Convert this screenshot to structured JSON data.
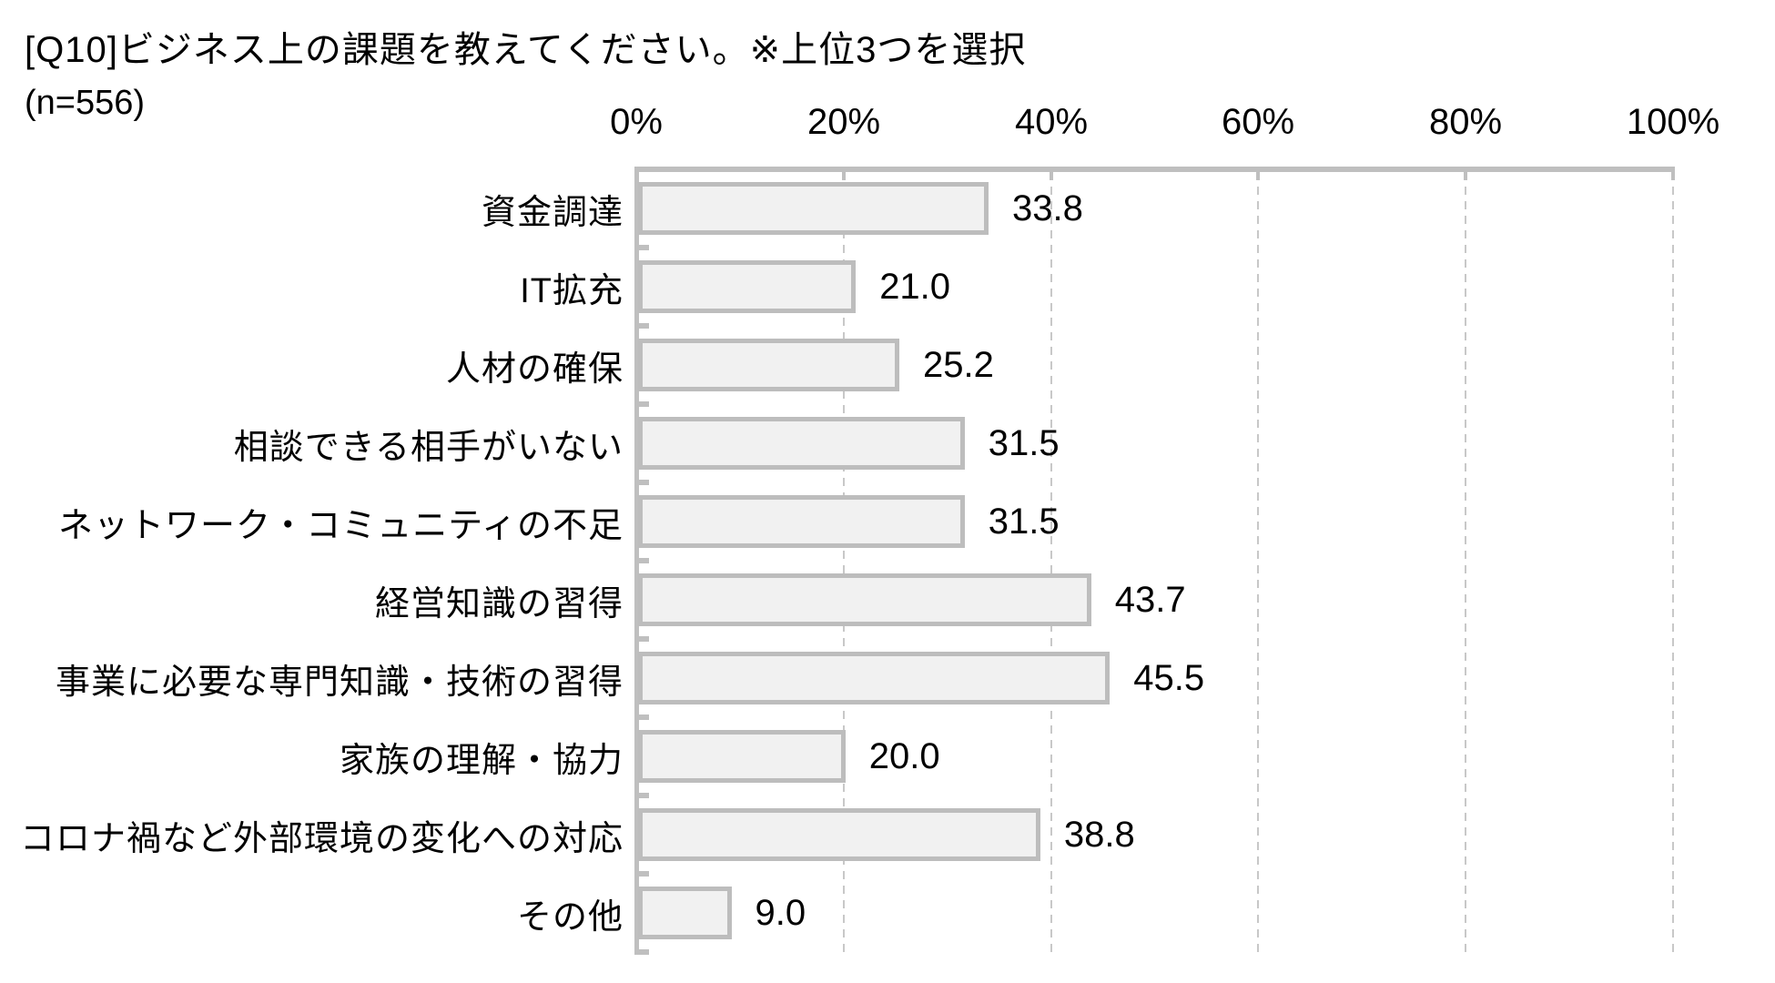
{
  "title": "[Q10]ビジネス上の課題を教えてください。※上位3つを選択",
  "sample_size_label": "(n=556)",
  "chart_data": {
    "type": "bar",
    "orientation": "horizontal",
    "title": "[Q10]ビジネス上の課題を教えてください。※上位3つを選択",
    "subtitle": "(n=556)",
    "categories": [
      "資金調達",
      "IT拡充",
      "人材の確保",
      "相談できる相手がいない",
      "ネットワーク・コミュニティの不足",
      "経営知識の習得",
      "事業に必要な専門知識・技術の習得",
      "家族の理解・協力",
      "コロナ禍など外部環境の変化への対応",
      "その他"
    ],
    "values": [
      33.8,
      21.0,
      25.2,
      31.5,
      31.5,
      43.7,
      45.5,
      20.0,
      38.8,
      9.0
    ],
    "value_labels": [
      "33.8",
      "21.0",
      "25.2",
      "31.5",
      "31.5",
      "43.7",
      "45.5",
      "20.0",
      "38.8",
      "9.0"
    ],
    "x_axis": {
      "min": 0,
      "max": 100,
      "tick_step": 20,
      "ticks": [
        "0%",
        "20%",
        "40%",
        "60%",
        "80%",
        "100%"
      ],
      "position": "top"
    },
    "grid": "vertical dashed lines every 20%",
    "legend": "none"
  },
  "colors": {
    "background": "#ffffff",
    "text": "#000000",
    "bar_fill": "#f1f1f1",
    "bar_border": "#bdbdbd",
    "axis_line": "#bfbfbf",
    "gridline": "#c8c8c8"
  }
}
